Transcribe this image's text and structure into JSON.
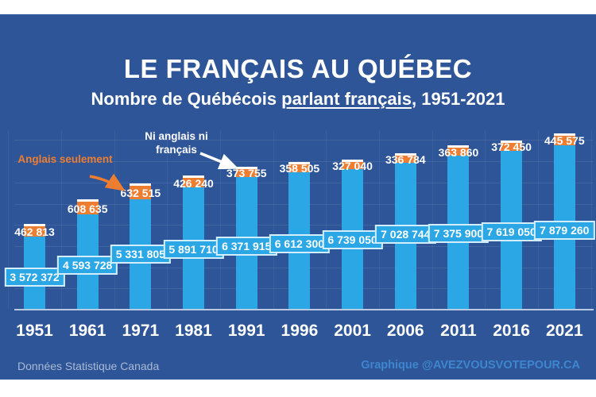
{
  "header": {
    "title": "LE FRANÇAIS AU QUÉBEC",
    "subtitle_prefix": "Nombre de Québécois ",
    "subtitle_underlined": "parlant français",
    "subtitle_suffix": ", 1951-2021"
  },
  "annotations": {
    "english_only": "Anglais seulement",
    "neither": "Ni anglais ni français"
  },
  "footer": {
    "source": "Données Statistique Canada",
    "credit": "Graphique @AVEZVOUSVOTEPOUR.CA"
  },
  "colors": {
    "panel_bg": "#2E5597",
    "bar_blue": "#2BA7E6",
    "accent_orange": "#ED7D31",
    "baseline": "#B9C9E0",
    "footer_source": "#A9B9D6",
    "footer_credit": "#3E86CF"
  },
  "chart_data": {
    "type": "bar",
    "stacked": true,
    "title": "LE FRANÇAIS AU QUÉBEC",
    "subtitle": "Nombre de Québécois parlant français, 1951-2021",
    "categories": [
      "1951",
      "1961",
      "1971",
      "1981",
      "1991",
      "1996",
      "2001",
      "2006",
      "2011",
      "2016",
      "2021"
    ],
    "series": [
      {
        "name": "Parlant français",
        "color": "#2BA7E6",
        "values": [
          3572372,
          4593728,
          5331805,
          5891710,
          6371915,
          6612300,
          6739050,
          7028744,
          7375900,
          7619050,
          7879260
        ],
        "labels": [
          "3 572 372",
          "4 593 728",
          "5 331 805",
          "5 891 710",
          "6 371 915",
          "6 612 300",
          "6 739 050",
          "7 028 744",
          "7 375 900",
          "7 619 050",
          "7 879 260"
        ]
      },
      {
        "name": "Anglais seulement / Ni anglais ni français",
        "color": "#ED7D31",
        "values": [
          462813,
          608635,
          632515,
          426240,
          373755,
          358505,
          327040,
          336784,
          363860,
          372450,
          445575
        ],
        "labels": [
          "462 813",
          "608 635",
          "632 515",
          "426 240",
          "373 755",
          "358 505",
          "327 040",
          "336 784",
          "363 860",
          "372 450",
          "445 575"
        ]
      }
    ],
    "ylim": [
      0,
      8500000
    ],
    "grid": "horizontal gridlines every 1 000 000",
    "legend_position": "inline annotations with arrows"
  }
}
